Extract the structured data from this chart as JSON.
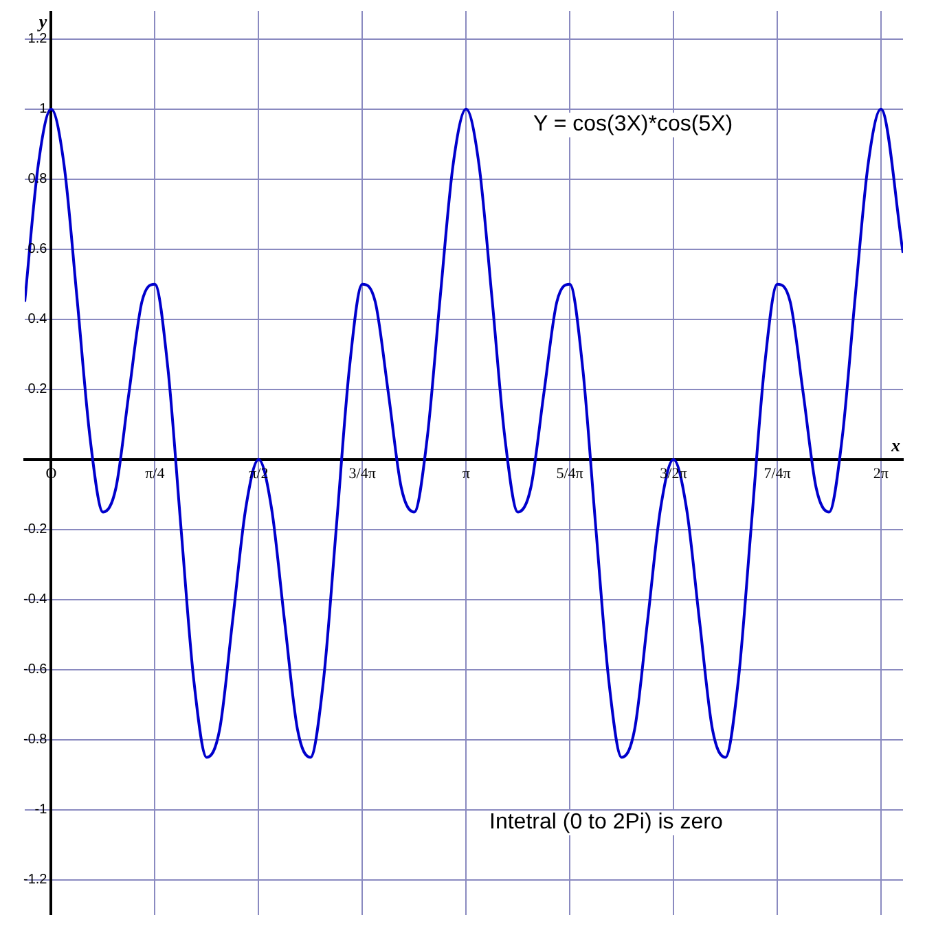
{
  "chart_data": {
    "type": "line",
    "xlabel": "x",
    "ylabel": "y",
    "annotations": [
      "Y = cos(3X)*cos(5X)",
      "Intetral (0 to 2Pi) is zero"
    ],
    "series": [
      {
        "color": "#0000cc",
        "x": [
          -0.2,
          -0.098,
          0,
          0.098,
          0.196,
          0.295,
          0.393,
          0.491,
          0.589,
          0.687,
          0.785,
          0.884,
          0.982,
          1.08,
          1.178,
          1.276,
          1.374,
          1.473,
          1.571,
          1.669,
          1.767,
          1.865,
          1.963,
          2.062,
          2.16,
          2.258,
          2.356,
          2.454,
          2.553,
          2.651,
          2.749,
          2.847,
          2.945,
          3.043,
          3.142,
          3.24,
          3.338,
          3.436,
          3.534,
          3.632,
          3.731,
          3.829,
          3.927,
          4.025,
          4.123,
          4.222,
          4.32,
          4.418,
          4.516,
          4.614,
          4.712,
          4.811,
          4.909,
          5.007,
          5.105,
          5.203,
          5.301,
          5.4,
          5.498,
          5.596,
          5.694,
          5.792,
          5.89,
          5.989,
          6.087,
          6.185,
          6.283,
          6.45
        ],
        "values": [
          0.45,
          0.84,
          1,
          0.84,
          0.46,
          0.06,
          -0.15,
          -0.08,
          0.19,
          0.45,
          0.5,
          0.26,
          -0.19,
          -0.63,
          -0.85,
          -0.77,
          -0.46,
          -0.14,
          0,
          -0.14,
          -0.46,
          -0.77,
          -0.85,
          -0.63,
          -0.19,
          0.26,
          0.5,
          0.45,
          0.19,
          -0.08,
          -0.15,
          0.06,
          0.46,
          0.84,
          1,
          0.84,
          0.46,
          0.06,
          -0.15,
          -0.08,
          0.19,
          0.45,
          0.5,
          0.26,
          -0.19,
          -0.63,
          -0.85,
          -0.77,
          -0.46,
          -0.14,
          0,
          -0.14,
          -0.46,
          -0.77,
          -0.85,
          -0.63,
          -0.19,
          0.26,
          0.5,
          0.45,
          0.19,
          -0.08,
          -0.15,
          0.06,
          0.46,
          0.84,
          1,
          0.59
        ]
      }
    ],
    "xlim": [
      -0.2,
      6.45
    ],
    "xticks": [
      {
        "value": 0,
        "label": "O"
      },
      {
        "value": 0.785,
        "label": "π/4"
      },
      {
        "value": 1.571,
        "label": "π/2"
      },
      {
        "value": 2.356,
        "label": "3/4π"
      },
      {
        "value": 3.142,
        "label": "π"
      },
      {
        "value": 3.927,
        "label": "5/4π"
      },
      {
        "value": 4.712,
        "label": "3/2π"
      },
      {
        "value": 5.498,
        "label": "7/4π"
      },
      {
        "value": 6.283,
        "label": "2π"
      }
    ],
    "ylim": [
      -1.3,
      1.28
    ],
    "yticks": [
      -1.2,
      -1,
      -0.8,
      -0.6,
      -0.4,
      -0.2,
      {
        "value": 0,
        "label": null
      },
      0.2,
      0.4,
      0.6,
      0.8,
      1,
      1.2
    ],
    "grid": true,
    "legend": false,
    "marker": "none",
    "line_style": "solid"
  }
}
